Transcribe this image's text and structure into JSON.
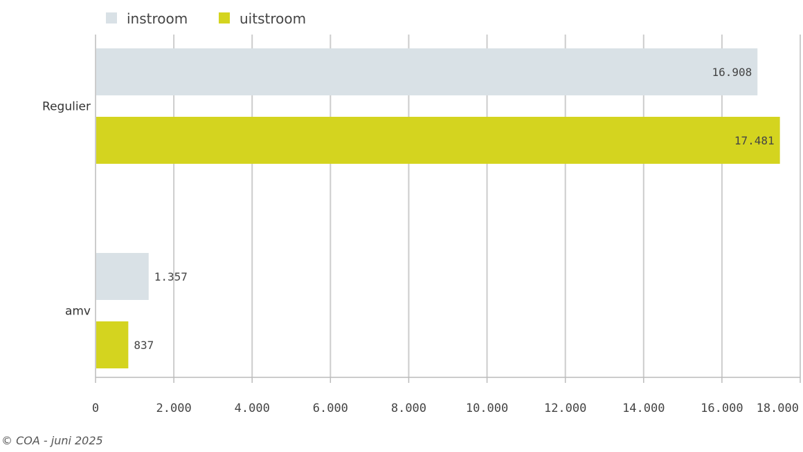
{
  "chart_data": {
    "type": "bar",
    "orientation": "horizontal",
    "categories": [
      "Regulier",
      "amv"
    ],
    "series": [
      {
        "name": "instroom",
        "values": [
          16908,
          1357
        ],
        "labels": [
          "16.908",
          "1.357"
        ],
        "color": "#d9e1e6"
      },
      {
        "name": "uitstroom",
        "values": [
          17481,
          837
        ],
        "labels": [
          "17.481",
          "837"
        ],
        "color": "#d4d41f"
      }
    ],
    "xlim": [
      0,
      18000
    ],
    "xticks": [
      0,
      2000,
      4000,
      6000,
      8000,
      10000,
      12000,
      14000,
      16000,
      18000
    ],
    "xtick_labels": [
      "0",
      "2.000",
      "4.000",
      "6.000",
      "8.000",
      "10.000",
      "12.000",
      "14.000",
      "16.000",
      "18.000"
    ],
    "grid": true,
    "legend_position": "top-left"
  },
  "footer": "© COA - juni 2025",
  "colors": {
    "grid": "#cccccc",
    "axis": "#bbbbbb"
  }
}
